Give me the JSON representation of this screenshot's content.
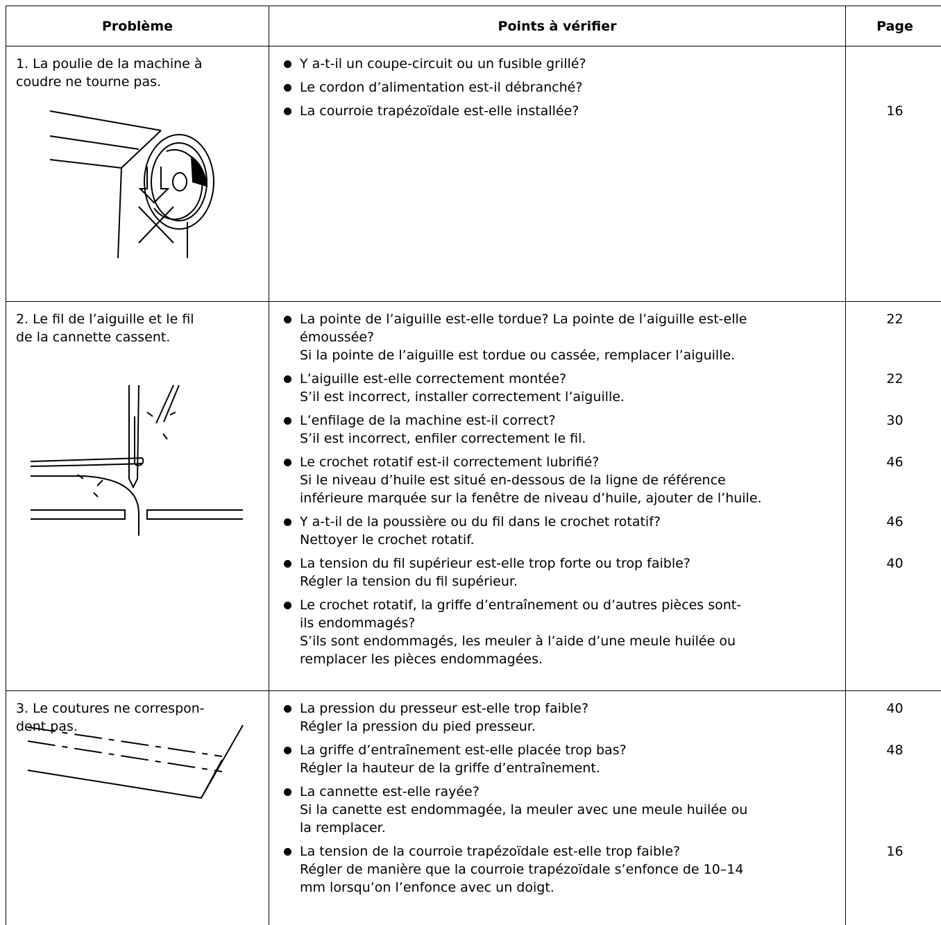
{
  "header": [
    "Problème",
    "Points à vérifier",
    "Page"
  ],
  "rows": [
    {
      "problem": [
        "1. La poulie de la machine à",
        "coudre ne tourne pas."
      ],
      "checks": [
        {
          "lines": [
            "Y a-t-il un coupe-circuit ou un fusible grillé?"
          ]
        },
        {
          "lines": [
            "Le cordon d’alimentation est-il débranché?"
          ]
        },
        {
          "lines": [
            "La courroie trapézoïdale est-elle installée?"
          ],
          "page": 16
        }
      ]
    },
    {
      "problem": [
        "2. Le fil de l’aiguille et le fil",
        "de la cannette cassent."
      ],
      "checks": [
        {
          "lines": [
            "La pointe de l’aiguille est-elle tordue? La pointe de l’aiguille est-elle",
            "émoussée?",
            "Si la pointe de l’aiguille est tordue ou cassée, remplacer l’aiguille."
          ],
          "page": 22
        },
        {
          "lines": [
            "L’aiguille est-elle correctement montée?",
            "S’il est incorrect, installer correctement l’aiguille."
          ],
          "page": 22
        },
        {
          "lines": [
            "L’enfilage de la machine est-il correct?",
            "S’il est incorrect, enfiler correctement le fil."
          ],
          "page": 30
        },
        {
          "lines": [
            "Le crochet rotatif est-il correctement lubrifié?",
            "Si le niveau d’huile est situé en-dessous de la ligne de référence",
            "inférieure marquée sur la fenêtre de niveau d’huile, ajouter de l’huile."
          ],
          "page": 46
        },
        {
          "lines": [
            "Y a-t-il de la poussière ou du fil dans le crochet rotatif?",
            "Nettoyer le crochet rotatif."
          ],
          "page": 46
        },
        {
          "lines": [
            "La tension du fil supérieur est-elle trop forte ou trop faible?",
            "Régler la tension du fil supérieur."
          ],
          "page": 40
        },
        {
          "lines": [
            "Le crochet rotatif, la griffe d’entraînement ou d’autres pièces sont-",
            "ils endommagés?",
            "S’ils sont endommagés, les meuler à l’aide d’une meule huilée ou",
            "remplacer les pièces endommagées."
          ]
        }
      ]
    },
    {
      "problem": [
        "3. Le coutures ne correspon-",
        "dent pas."
      ],
      "checks": [
        {
          "lines": [
            "La pression du presseur est-elle trop faible?",
            "Régler la pression du pied presseur."
          ],
          "page": 40
        },
        {
          "lines": [
            "La griffe d’entraînement est-elle placée trop bas?",
            "Régler la hauteur de la griffe d’entraînement."
          ],
          "page": 48
        },
        {
          "lines": [
            "La cannette est-elle rayée?",
            "Si la canette est endommagée, la meuler avec une meule huilée ou",
            "la remplacer."
          ]
        },
        {
          "lines": [
            "La tension de la courroie trapézoïdale est-elle trop faible?",
            "Régler de manière que la courroie trapézoïdale s’enfonce de 10–14",
            "mm lorsqu’on l’enfonce avec un doigt."
          ],
          "page": 16
        }
      ]
    }
  ]
}
